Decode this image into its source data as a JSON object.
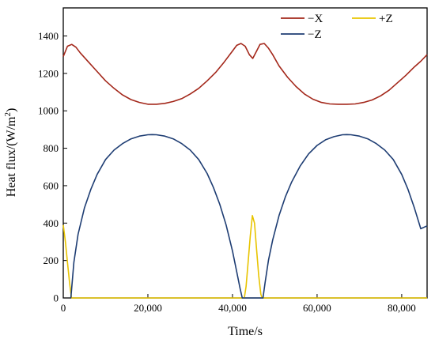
{
  "chart_data": {
    "type": "line",
    "xlabel": "Time/s",
    "ylabel_main": "Heat flux/(W/m",
    "ylabel_sup": "2",
    "ylabel_tail": ")",
    "xlim": [
      0,
      86000
    ],
    "ylim": [
      0,
      1550
    ],
    "xticks": [
      0,
      20000,
      40000,
      60000,
      80000
    ],
    "xtick_labels": [
      "0",
      "20,000",
      "40,000",
      "60,000",
      "80,000"
    ],
    "yticks": [
      0,
      200,
      400,
      600,
      800,
      1000,
      1200,
      1400
    ],
    "ytick_labels": [
      "0",
      "200",
      "400",
      "600",
      "800",
      "1000",
      "1200",
      "1400"
    ],
    "grid": false,
    "legend_position": "top-right",
    "series": [
      {
        "name": "−X",
        "color": "#a3271a",
        "x": [
          0,
          1000,
          2000,
          3000,
          4000,
          6000,
          8000,
          10000,
          12000,
          14000,
          16000,
          18000,
          20000,
          22000,
          24000,
          26000,
          28000,
          30000,
          32000,
          34000,
          36000,
          38000,
          40000,
          41000,
          42000,
          43000,
          44000,
          44800,
          45600,
          46500,
          47500,
          48500,
          49500,
          51000,
          53000,
          55000,
          57000,
          59000,
          61000,
          63000,
          65000,
          67000,
          69000,
          71000,
          73000,
          75000,
          77000,
          79000,
          81000,
          83000,
          84500,
          86000
        ],
        "y": [
          1290,
          1345,
          1355,
          1340,
          1310,
          1260,
          1210,
          1160,
          1120,
          1085,
          1060,
          1045,
          1035,
          1035,
          1040,
          1050,
          1065,
          1090,
          1120,
          1160,
          1205,
          1260,
          1320,
          1350,
          1360,
          1345,
          1300,
          1280,
          1315,
          1355,
          1360,
          1335,
          1300,
          1240,
          1180,
          1130,
          1090,
          1062,
          1045,
          1037,
          1035,
          1035,
          1037,
          1045,
          1058,
          1080,
          1110,
          1150,
          1190,
          1235,
          1265,
          1300
        ]
      },
      {
        "name": "+Z",
        "color": "#e8c400",
        "x": [
          0,
          500,
          1000,
          1500,
          1900,
          2000,
          10000,
          20000,
          30000,
          40000,
          42800,
          43200,
          43700,
          44200,
          44700,
          45200,
          45700,
          46200,
          46700,
          47000,
          55000,
          65000,
          75000,
          86000
        ],
        "y": [
          390,
          300,
          190,
          80,
          5,
          0,
          0,
          0,
          0,
          0,
          0,
          60,
          190,
          330,
          440,
          400,
          260,
          120,
          20,
          0,
          0,
          0,
          0,
          0
        ]
      },
      {
        "name": "−Z",
        "color": "#1e3d73",
        "x": [
          1800,
          2500,
          3500,
          5000,
          6500,
          8000,
          10000,
          12000,
          14000,
          16000,
          18000,
          20000,
          21000,
          22000,
          24000,
          26000,
          28000,
          30000,
          32000,
          34000,
          35500,
          37000,
          38500,
          40000,
          41000,
          41800,
          42300,
          47200,
          47700,
          48500,
          49500,
          51000,
          52500,
          54000,
          56000,
          58000,
          60000,
          62000,
          64000,
          66000,
          67000,
          68000,
          70000,
          72000,
          74000,
          76000,
          78000,
          80000,
          81500,
          83000,
          84500,
          86000
        ],
        "y": [
          0,
          190,
          340,
          480,
          580,
          660,
          740,
          790,
          825,
          850,
          865,
          872,
          873,
          872,
          865,
          850,
          825,
          790,
          740,
          665,
          590,
          500,
          390,
          250,
          140,
          50,
          0,
          0,
          80,
          200,
          310,
          440,
          540,
          620,
          705,
          770,
          815,
          845,
          862,
          872,
          873,
          872,
          865,
          850,
          825,
          790,
          740,
          660,
          580,
          480,
          370,
          385
        ]
      }
    ],
    "legend": {
      "row1": [
        "−X",
        "+Z"
      ],
      "row2": [
        "−Z"
      ]
    }
  }
}
